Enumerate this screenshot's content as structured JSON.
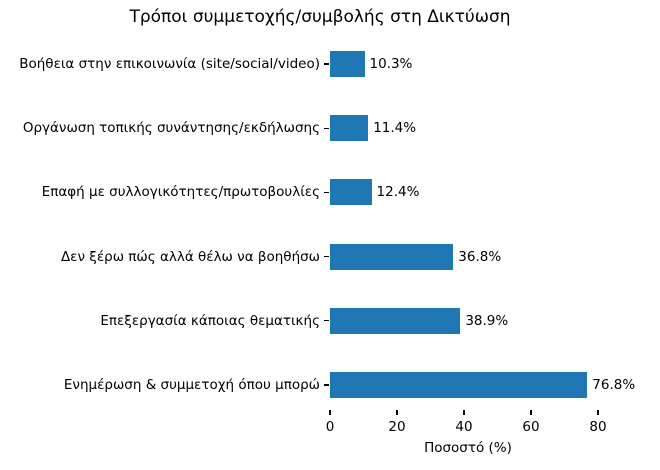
{
  "chart_data": {
    "type": "bar",
    "orientation": "horizontal",
    "title": "Τρόποι συμμετοχής/συμβολής στη Δικτύωση",
    "categories": [
      "Βοήθεια στην επικοινωνία (site/social/video)",
      "Οργάνωση τοπικής συνάντησης/εκδήλωσης",
      "Επαφή με συλλογικότητες/πρωτοβουλίες",
      "Δεν ξέρω πώς αλλά θέλω να βοηθήσω",
      "Επεξεργασία κάποιας θεματικής",
      "Ενημέρωση & συμμετοχή όπου μπορώ"
    ],
    "values": [
      10.3,
      11.4,
      12.4,
      36.8,
      38.9,
      76.8
    ],
    "value_labels": [
      "10.3%",
      "11.4%",
      "12.4%",
      "36.8%",
      "38.9%",
      "76.8%"
    ],
    "xlabel": "Ποσοστό (%)",
    "x_ticks": [
      0,
      20,
      40,
      60,
      80
    ],
    "xlim": [
      0,
      85
    ],
    "grid": false,
    "legend": null,
    "bar_color": "#1f77b4",
    "text_color": "#000000",
    "background_color": "#ffffff"
  }
}
